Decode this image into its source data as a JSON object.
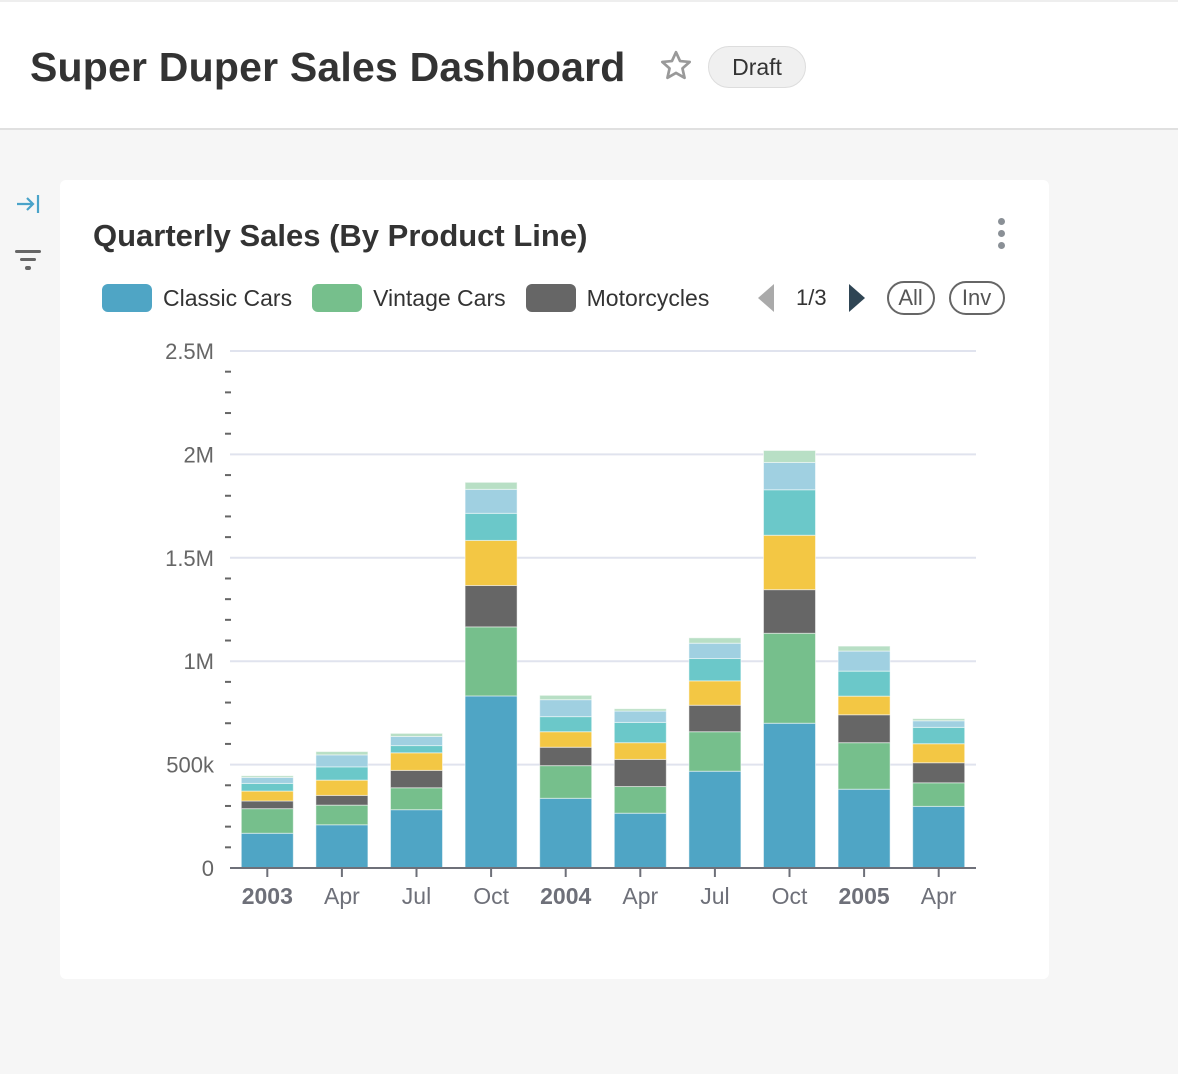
{
  "header": {
    "title": "Super Duper Sales Dashboard",
    "badge": "Draft",
    "favorite_icon": "star-outline-icon"
  },
  "sidebar": {
    "expand_icon": "expand-right-icon",
    "filter_icon": "filter-icon",
    "accent_color": "#4aa3c9"
  },
  "card": {
    "title": "Quarterly Sales (By Product Line)",
    "menu_icon": "kebab-vertical-icon",
    "legend": {
      "items": [
        {
          "label": "Classic Cars",
          "color": "#4fa5c5"
        },
        {
          "label": "Vintage Cars",
          "color": "#76bf8c"
        },
        {
          "label": "Motorcycles",
          "color": "#666666"
        }
      ],
      "page": "1/3",
      "all_label": "All",
      "inv_label": "Inv"
    }
  },
  "chart_data": {
    "type": "bar",
    "stacked": true,
    "title": "Quarterly Sales (By Product Line)",
    "categories": [
      "2003",
      "Apr",
      "Jul",
      "Oct",
      "2004",
      "Apr",
      "Jul",
      "Oct",
      "2005",
      "Apr"
    ],
    "bold_categories": [
      "2003",
      "2004",
      "2005"
    ],
    "ylim": [
      0,
      2500000
    ],
    "y_ticks": [
      {
        "value": 0,
        "label": "0"
      },
      {
        "value": 500000,
        "label": "500k"
      },
      {
        "value": 1000000,
        "label": "1M"
      },
      {
        "value": 1500000,
        "label": "1.5M"
      },
      {
        "value": 2000000,
        "label": "2M"
      },
      {
        "value": 2500000,
        "label": "2.5M"
      }
    ],
    "grid": true,
    "legend_position": "top",
    "series": [
      {
        "name": "Classic Cars",
        "color": "#4fa5c5",
        "values": [
          168000,
          209000,
          282000,
          832000,
          337000,
          265000,
          468000,
          700000,
          381000,
          298000
        ]
      },
      {
        "name": "Vintage Cars",
        "color": "#76bf8c",
        "values": [
          119000,
          95000,
          106000,
          334000,
          158000,
          129000,
          191000,
          435000,
          225000,
          114000
        ]
      },
      {
        "name": "Motorcycles",
        "color": "#666666",
        "values": [
          37000,
          47000,
          84000,
          200000,
          89000,
          131000,
          128000,
          211000,
          135000,
          97000
        ]
      },
      {
        "color": "#f3c744",
        "values": [
          48000,
          74000,
          85000,
          218000,
          75000,
          81000,
          118000,
          263000,
          90000,
          92000
        ]
      },
      {
        "color": "#6bc8c9",
        "values": [
          37000,
          64000,
          35000,
          131000,
          73000,
          98000,
          108000,
          220000,
          121000,
          79000
        ]
      },
      {
        "color": "#a0d0e1",
        "values": [
          29000,
          58000,
          44000,
          116000,
          82000,
          55000,
          74000,
          132000,
          97000,
          32000
        ]
      },
      {
        "color": "#b8dfc5",
        "values": [
          8000,
          16000,
          15000,
          34000,
          21000,
          11000,
          26000,
          58000,
          24000,
          10000
        ]
      }
    ]
  }
}
